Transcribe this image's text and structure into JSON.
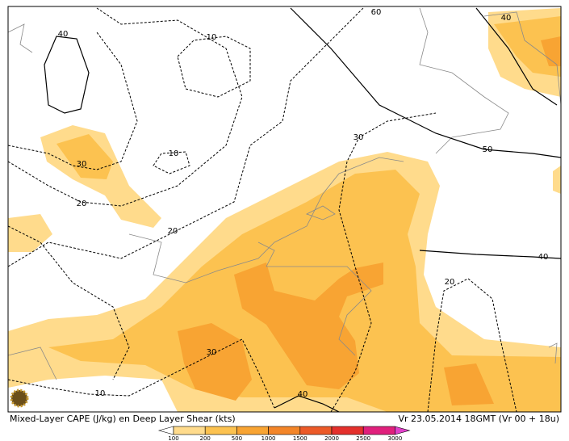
{
  "map": {
    "title": "Mixed-Layer CAPE (J/kg) en Deep Layer Shear (kts)",
    "valid_time": "Vr 23.05.2014 18GMT (Vr 00 + 18u)",
    "contour_labels": [
      40,
      10,
      60,
      40,
      30,
      10,
      20,
      20,
      30,
      50,
      40,
      20,
      30,
      10,
      40
    ]
  },
  "legend": {
    "levels": [
      100,
      200,
      500,
      1000,
      1500,
      2000,
      2500,
      3000
    ],
    "colors": [
      "#ffffff",
      "#ffdb8c",
      "#fcc250",
      "#f8a433",
      "#f38528",
      "#ec5a28",
      "#e4302c",
      "#e0207c",
      "#e040c8"
    ]
  }
}
